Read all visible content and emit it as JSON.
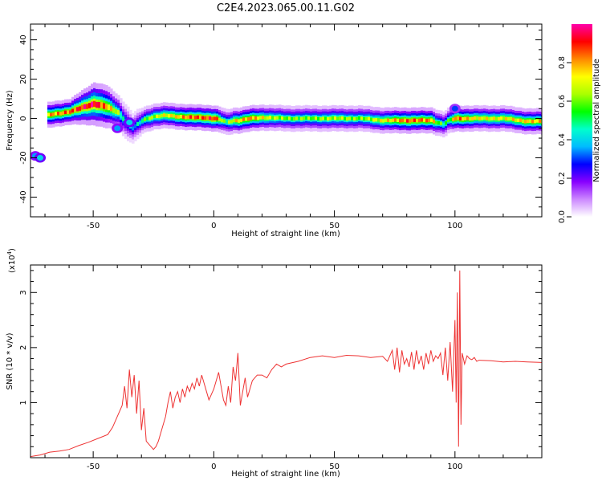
{
  "title": "C2E4.2023.065.00.11.G02",
  "chart_data": [
    {
      "type": "heatmap",
      "id": "spectrogram",
      "xlabel": "Height of straight line (km)",
      "ylabel": "Frequency (Hz)",
      "xlim": [
        -76,
        136
      ],
      "ylim": [
        -50,
        48
      ],
      "xticks": [
        -50,
        0,
        50,
        100
      ],
      "yticks": [
        -40,
        -20,
        0,
        20,
        40
      ],
      "colorbar": {
        "label": "Normalized spectral amplitude",
        "range": [
          0,
          1
        ],
        "ticks": [
          0.0,
          0.2,
          0.4,
          0.6,
          0.8
        ],
        "tick_labels": [
          "0.0",
          "0.2",
          "0.4",
          "0.6",
          "0.8"
        ],
        "colors": [
          "#ffffff",
          "#cc88ff",
          "#8800ff",
          "#0000ff",
          "#00bbff",
          "#00ffcc",
          "#00ff00",
          "#aaff00",
          "#ffff00",
          "#ff8800",
          "#ff0000",
          "#ff00aa"
        ]
      },
      "ridge": {
        "x": [
          -70,
          -65,
          -60,
          -55,
          -50,
          -45,
          -40,
          -38,
          -36,
          -34,
          -32,
          -30,
          -28,
          -25,
          -20,
          -15,
          -10,
          -5,
          0,
          3,
          5,
          8,
          10,
          15,
          20,
          30,
          40,
          50,
          60,
          70,
          80,
          90,
          92,
          95,
          97,
          100,
          105,
          110,
          120,
          130,
          136
        ],
        "y": [
          1.5,
          2.5,
          3.5,
          5.5,
          7.5,
          6,
          3,
          0,
          -3,
          -5,
          -3,
          -1,
          0,
          1,
          1.5,
          1,
          0.5,
          0.5,
          0,
          -1,
          -2,
          -1,
          -1,
          0,
          0.5,
          0,
          0,
          0,
          0,
          -1,
          -1,
          -1,
          -2,
          -3,
          -1,
          0,
          0,
          0,
          0,
          -1.5,
          -1.5
        ],
        "amplitude": [
          0.8,
          0.8,
          0.85,
          0.9,
          0.95,
          0.8,
          0.6,
          0.45,
          0.4,
          0.35,
          0.4,
          0.5,
          0.6,
          0.65,
          0.7,
          0.75,
          0.85,
          0.85,
          0.9,
          0.6,
          0.55,
          0.7,
          0.75,
          0.8,
          0.7,
          0.6,
          0.6,
          0.65,
          0.6,
          0.7,
          0.85,
          0.8,
          0.6,
          0.5,
          0.55,
          0.85,
          0.75,
          0.7,
          0.7,
          0.75,
          0.75
        ],
        "halfwidth": [
          3,
          3,
          3,
          4,
          5,
          5,
          4,
          4,
          4,
          3.5,
          3.5,
          3,
          3,
          3,
          3,
          3,
          3,
          3,
          3,
          3,
          3,
          3,
          3,
          3,
          3,
          3,
          3,
          3,
          3,
          3,
          3,
          3,
          3,
          3,
          3,
          3,
          3,
          3,
          3,
          3,
          3
        ]
      },
      "blobs": [
        {
          "x": -74,
          "y": -19,
          "amplitude": 0.35
        },
        {
          "x": -72,
          "y": -20,
          "amplitude": 0.4
        },
        {
          "x": -40,
          "y": -5,
          "amplitude": 0.35
        },
        {
          "x": -35,
          "y": -2,
          "amplitude": 0.4
        },
        {
          "x": 100,
          "y": 5,
          "amplitude": 0.3
        }
      ]
    },
    {
      "type": "line",
      "id": "snr",
      "xlabel": "Height of straight line (km)",
      "ylabel": "SNR (10 * v/v)",
      "y_multiplier_label": "(x10",
      "y_multiplier_exp": "4",
      "y_multiplier_close": ")",
      "xlim": [
        -76,
        136
      ],
      "ylim": [
        0,
        3.5
      ],
      "xticks": [
        -50,
        0,
        50,
        100
      ],
      "yticks": [
        1,
        2,
        3
      ],
      "color": "#ee3333",
      "series": [
        {
          "x": [
            -76,
            -72,
            -68,
            -64,
            -60,
            -56,
            -52,
            -48,
            -44,
            -42,
            -40,
            -38,
            -37,
            -36,
            -35,
            -34,
            -33,
            -32,
            -31,
            -30,
            -29,
            -28,
            -27,
            -26,
            -25,
            -24,
            -23,
            -22,
            -21,
            -20,
            -19,
            -18,
            -17,
            -16,
            -15,
            -14,
            -13,
            -12,
            -11,
            -10,
            -9,
            -8,
            -7,
            -6,
            -5,
            -4,
            -3,
            -2,
            -1,
            0,
            1,
            2,
            3,
            4,
            5,
            6,
            7,
            8,
            9,
            10,
            11,
            12,
            13,
            14,
            16,
            18,
            20,
            22,
            24,
            26,
            28,
            30,
            35,
            40,
            45,
            50,
            55,
            60,
            65,
            70,
            72,
            74,
            75,
            76,
            77,
            78,
            79,
            80,
            81,
            82,
            83,
            84,
            85,
            86,
            87,
            88,
            89,
            90,
            91,
            92,
            93,
            94,
            95,
            96,
            97,
            98,
            99,
            100,
            100.5,
            101,
            101.5,
            102,
            102.5,
            103,
            104,
            105,
            106,
            107,
            108,
            109,
            110,
            115,
            120,
            125,
            130,
            136
          ],
          "values": [
            0.02,
            0.05,
            0.1,
            0.12,
            0.15,
            0.22,
            0.28,
            0.35,
            0.42,
            0.55,
            0.75,
            0.95,
            1.3,
            0.9,
            1.6,
            1.1,
            1.5,
            0.8,
            1.4,
            0.5,
            0.9,
            0.3,
            0.25,
            0.2,
            0.15,
            0.2,
            0.3,
            0.45,
            0.6,
            0.75,
            1.0,
            1.2,
            0.9,
            1.1,
            1.2,
            1.0,
            1.25,
            1.1,
            1.3,
            1.2,
            1.35,
            1.25,
            1.45,
            1.3,
            1.5,
            1.35,
            1.2,
            1.05,
            1.15,
            1.25,
            1.4,
            1.55,
            1.3,
            1.05,
            0.95,
            1.3,
            1.0,
            1.65,
            1.4,
            1.9,
            0.95,
            1.2,
            1.45,
            1.1,
            1.4,
            1.5,
            1.5,
            1.45,
            1.6,
            1.7,
            1.65,
            1.7,
            1.75,
            1.82,
            1.85,
            1.82,
            1.86,
            1.85,
            1.82,
            1.84,
            1.75,
            1.95,
            1.6,
            2.0,
            1.55,
            1.95,
            1.7,
            1.8,
            1.65,
            1.92,
            1.6,
            1.95,
            1.7,
            1.85,
            1.6,
            1.9,
            1.7,
            1.95,
            1.75,
            1.85,
            1.8,
            1.9,
            1.5,
            2.0,
            1.4,
            2.1,
            1.2,
            2.5,
            1.0,
            3.0,
            0.2,
            3.4,
            0.6,
            1.9,
            1.7,
            1.85,
            1.8,
            1.78,
            1.82,
            1.75,
            1.77,
            1.76,
            1.74,
            1.75,
            1.74,
            1.73
          ]
        }
      ]
    }
  ]
}
